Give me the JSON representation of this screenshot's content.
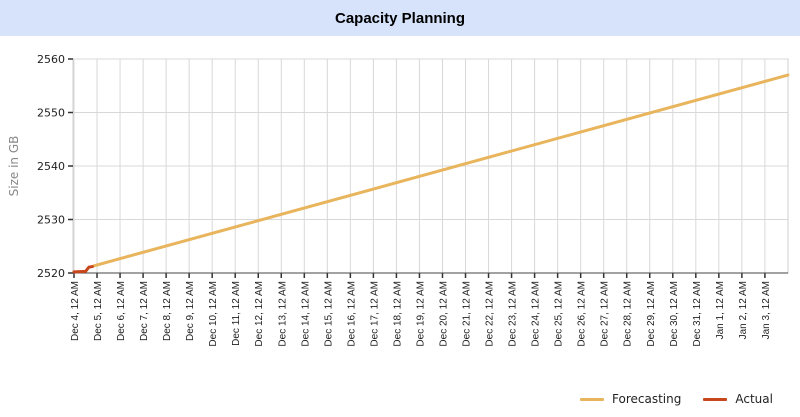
{
  "header": {
    "title": "Capacity Planning"
  },
  "colors": {
    "header_bg": "#d6e3fb",
    "forecasting": "#e8b45c",
    "actual": "#c8461c",
    "grid": "#d8d8d8"
  },
  "chart_data": {
    "type": "line",
    "title": "Capacity Planning",
    "xlabel": "",
    "ylabel": "Size in GB",
    "ylim": [
      2520,
      2560
    ],
    "yticks": [
      2520,
      2530,
      2540,
      2550,
      2560
    ],
    "grid": true,
    "legend_position": "bottom-right",
    "categories": [
      "Dec 4, 12 AM",
      "Dec 5, 12 AM",
      "Dec 6, 12 AM",
      "Dec 7, 12 AM",
      "Dec 8, 12 AM",
      "Dec 9, 12 AM",
      "Dec 10, 12 AM",
      "Dec 11, 12 AM",
      "Dec 12, 12 AM",
      "Dec 13, 12 AM",
      "Dec 14, 12 AM",
      "Dec 15, 12 AM",
      "Dec 16, 12 AM",
      "Dec 17, 12 AM",
      "Dec 18, 12 AM",
      "Dec 19, 12 AM",
      "Dec 20, 12 AM",
      "Dec 21, 12 AM",
      "Dec 22, 12 AM",
      "Dec 23, 12 AM",
      "Dec 24, 12 AM",
      "Dec 25, 12 AM",
      "Dec 26, 12 AM",
      "Dec 27, 12 AM",
      "Dec 28, 12 AM",
      "Dec 29, 12 AM",
      "Dec 30, 12 AM",
      "Dec 31, 12 AM",
      "Jan 1, 12 AM",
      "Jan 2, 12 AM",
      "Jan 3, 12 AM"
    ],
    "series": [
      {
        "name": "Forecasting",
        "color": "#e8b45c",
        "x": [
          0.83,
          31.0
        ],
        "values": [
          2521.3,
          2557.0
        ]
      },
      {
        "name": "Actual",
        "color": "#c8461c",
        "x": [
          0,
          0.5,
          0.65,
          0.8
        ],
        "values": [
          2520.2,
          2520.3,
          2521.1,
          2521.2
        ]
      }
    ]
  },
  "legend": [
    {
      "label": "Forecasting",
      "color": "#e8b45c"
    },
    {
      "label": "Actual",
      "color": "#c8461c"
    }
  ]
}
